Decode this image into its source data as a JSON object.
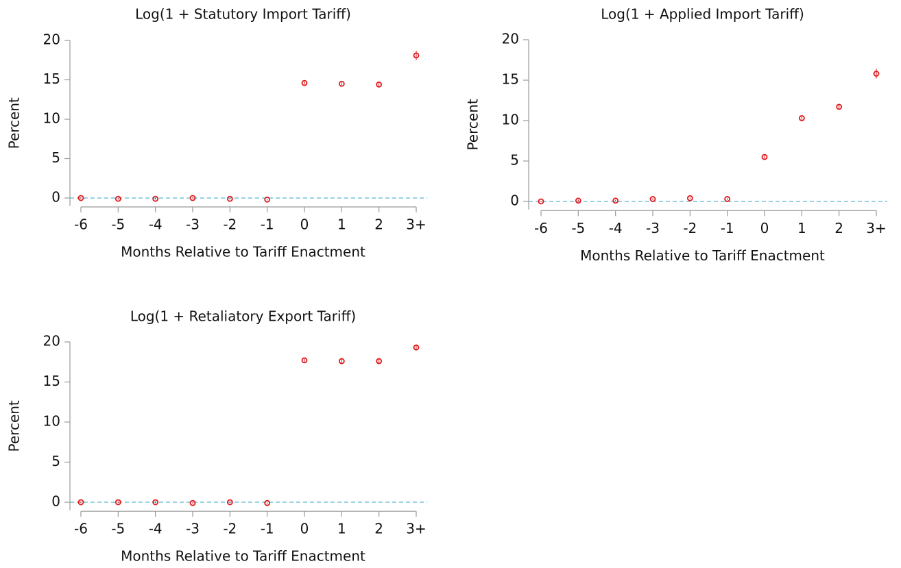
{
  "chart_data": [
    {
      "type": "scatter",
      "title": "Log(1 + Statutory Import Tariff)",
      "x_label": "Months Relative to Tariff Enactment",
      "y_label": "Percent",
      "categories": [
        "-6",
        "-5",
        "-4",
        "-3",
        "-2",
        "-1",
        "0",
        "1",
        "2",
        "3+"
      ],
      "values": [
        0,
        -0.1,
        -0.1,
        0,
        -0.1,
        -0.2,
        14.6,
        14.5,
        14.4,
        18.1
      ],
      "errors": [
        0.1,
        0.1,
        0.1,
        0.1,
        0.1,
        0.1,
        0.2,
        0.2,
        0.2,
        0.6
      ],
      "color": "#e0191c",
      "ylim": [
        -1,
        20
      ],
      "yticks": [
        0,
        5,
        10,
        15,
        20
      ],
      "reference_line": 0,
      "reference_color": "#5ab4d4"
    },
    {
      "type": "scatter",
      "title": "Log(1 + Applied Import Tariff)",
      "x_label": "Months Relative to Tariff Enactment",
      "y_label": "Percent",
      "categories": [
        "-6",
        "-5",
        "-4",
        "-3",
        "-2",
        "-1",
        "0",
        "1",
        "2",
        "3+"
      ],
      "values": [
        0,
        0.1,
        0.1,
        0.3,
        0.4,
        0.3,
        5.5,
        10.3,
        11.7,
        15.8
      ],
      "errors": [
        0.1,
        0.1,
        0.1,
        0.1,
        0.1,
        0.1,
        0.2,
        0.2,
        0.2,
        0.6
      ],
      "color": "#e0191c",
      "ylim": [
        -1,
        20
      ],
      "yticks": [
        0,
        5,
        10,
        15,
        20
      ],
      "reference_line": 0,
      "reference_color": "#5ab4d4"
    },
    {
      "type": "scatter",
      "title": "Log(1 + Retaliatory Export Tariff)",
      "x_label": "Months Relative to Tariff Enactment",
      "y_label": "Percent",
      "categories": [
        "-6",
        "-5",
        "-4",
        "-3",
        "-2",
        "-1",
        "0",
        "1",
        "2",
        "3+"
      ],
      "values": [
        0,
        0,
        0,
        -0.1,
        0,
        -0.1,
        17.7,
        17.6,
        17.6,
        19.3
      ],
      "errors": [
        0.1,
        0.1,
        0.1,
        0.1,
        0.1,
        0.1,
        0.2,
        0.2,
        0.2,
        0.3
      ],
      "color": "#e0191c",
      "ylim": [
        -1,
        20
      ],
      "yticks": [
        0,
        5,
        10,
        15,
        20
      ],
      "reference_line": 0,
      "reference_color": "#5ab4d4"
    }
  ]
}
